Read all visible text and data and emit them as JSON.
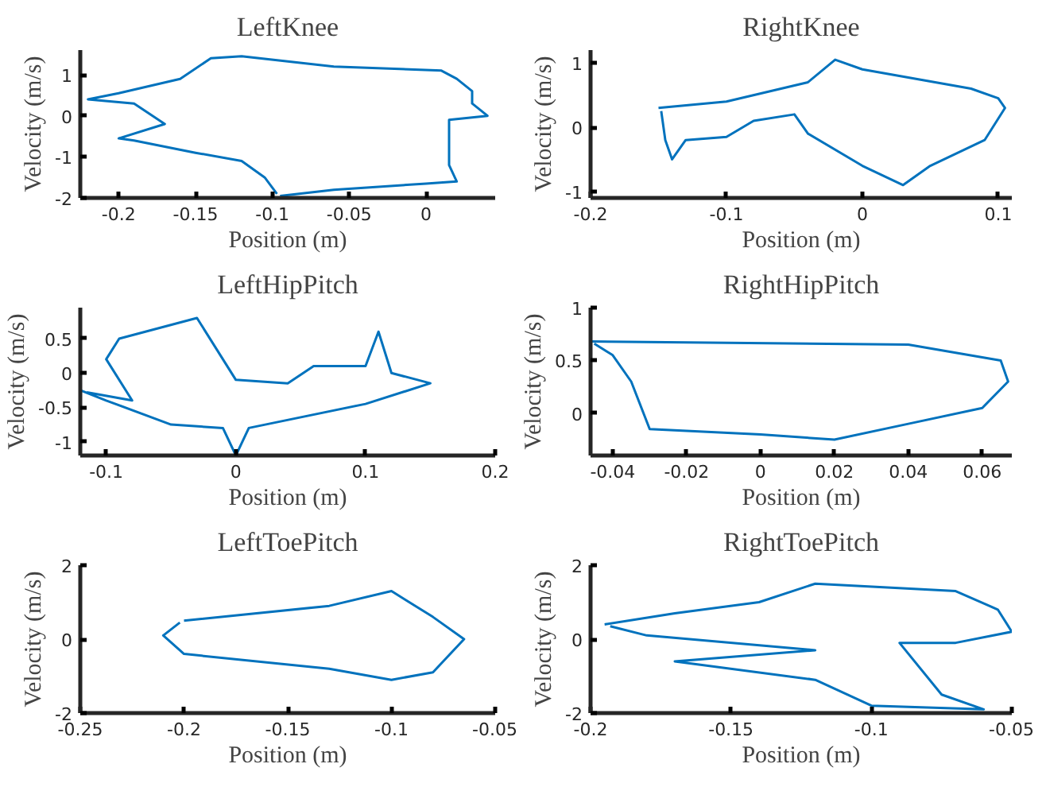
{
  "chart_data": [
    {
      "type": "line",
      "title": "LeftKnee",
      "xlabel": "Position (m)",
      "ylabel": "Velocity (m/s)",
      "xlim": [
        -0.225,
        0.045
      ],
      "ylim": [
        -2,
        1.6
      ],
      "xticks": [
        -0.2,
        -0.15,
        -0.1,
        -0.05,
        0
      ],
      "yticks": [
        -2,
        -1,
        0,
        1
      ],
      "x": [
        -0.095,
        -0.06,
        0.0,
        0.02,
        0.015,
        0.015,
        0.04,
        0.03,
        0.03,
        0.02,
        0.01,
        -0.06,
        -0.12,
        -0.14,
        -0.16,
        -0.2,
        -0.22,
        -0.19,
        -0.17,
        -0.2,
        -0.19,
        -0.15,
        -0.12,
        -0.105,
        -0.097
      ],
      "series": [
        {
          "color": "#0072bd",
          "values": [
            -1.95,
            -1.8,
            -1.65,
            -1.6,
            -1.2,
            -0.1,
            0.0,
            0.3,
            0.6,
            0.9,
            1.1,
            1.2,
            1.45,
            1.4,
            0.9,
            0.55,
            0.4,
            0.3,
            -0.2,
            -0.55,
            -0.6,
            -0.9,
            -1.1,
            -1.5,
            -1.9
          ]
        }
      ]
    },
    {
      "type": "line",
      "title": "RightKnee",
      "xlabel": "Position (m)",
      "ylabel": "Velocity (m/s)",
      "xlim": [
        -0.2,
        0.11
      ],
      "ylim": [
        -1.1,
        1.2
      ],
      "xticks": [
        -0.2,
        -0.1,
        0,
        0.1
      ],
      "yticks": [
        -1,
        0,
        1
      ],
      "x": [
        -0.15,
        -0.1,
        -0.04,
        -0.02,
        0.0,
        0.08,
        0.1,
        0.105,
        0.09,
        0.05,
        0.03,
        0.0,
        -0.04,
        -0.05,
        -0.08,
        -0.1,
        -0.13,
        -0.14,
        -0.145,
        -0.148
      ],
      "series": [
        {
          "color": "#0072bd",
          "values": [
            0.3,
            0.4,
            0.7,
            1.05,
            0.9,
            0.6,
            0.45,
            0.3,
            -0.2,
            -0.6,
            -0.9,
            -0.6,
            -0.1,
            0.2,
            0.1,
            -0.15,
            -0.2,
            -0.5,
            -0.2,
            0.25
          ]
        }
      ]
    },
    {
      "type": "line",
      "title": "LeftHipPitch",
      "xlabel": "Position (m)",
      "ylabel": "Velocity (m/s)",
      "xlim": [
        -0.12,
        0.2
      ],
      "ylim": [
        -1.2,
        0.95
      ],
      "xticks": [
        -0.1,
        0,
        0.1,
        0.2
      ],
      "yticks": [
        -1,
        -0.5,
        0,
        0.5
      ],
      "x": [
        -0.12,
        -0.1,
        -0.05,
        -0.01,
        0.0,
        0.01,
        0.1,
        0.15,
        0.12,
        0.11,
        0.1,
        0.06,
        0.04,
        0.0,
        -0.03,
        -0.09,
        -0.1,
        -0.08,
        -0.115
      ],
      "series": [
        {
          "color": "#0072bd",
          "values": [
            -0.25,
            -0.4,
            -0.75,
            -0.8,
            -1.2,
            -0.8,
            -0.45,
            -0.15,
            0.0,
            0.6,
            0.1,
            0.1,
            -0.15,
            -0.1,
            0.8,
            0.5,
            0.2,
            -0.4,
            -0.28
          ]
        }
      ]
    },
    {
      "type": "line",
      "title": "RightHipPitch",
      "xlabel": "Position (m)",
      "ylabel": "Velocity (m/s)",
      "xlim": [
        -0.046,
        0.068
      ],
      "ylim": [
        -0.4,
        1
      ],
      "xticks": [
        -0.04,
        -0.02,
        0,
        0.02,
        0.04,
        0.06
      ],
      "yticks": [
        0,
        0.5,
        1
      ],
      "x": [
        -0.046,
        0.04,
        0.065,
        0.067,
        0.06,
        0.04,
        0.02,
        0.0,
        -0.03,
        -0.035,
        -0.04,
        -0.045
      ],
      "series": [
        {
          "color": "#0072bd",
          "values": [
            0.68,
            0.65,
            0.5,
            0.3,
            0.05,
            -0.1,
            -0.25,
            -0.2,
            -0.15,
            0.3,
            0.55,
            0.66
          ]
        }
      ]
    },
    {
      "type": "line",
      "title": "LeftToePitch",
      "xlabel": "Position (m)",
      "ylabel": "Velocity (m/s)",
      "xlim": [
        -0.25,
        -0.05
      ],
      "ylim": [
        -2,
        2
      ],
      "xticks": [
        -0.25,
        -0.2,
        -0.15,
        -0.1,
        -0.05
      ],
      "yticks": [
        -2,
        0,
        2
      ],
      "x": [
        -0.2,
        -0.13,
        -0.1,
        -0.08,
        -0.065,
        -0.08,
        -0.1,
        -0.13,
        -0.2,
        -0.21,
        -0.202
      ],
      "series": [
        {
          "color": "#0072bd",
          "values": [
            0.5,
            0.9,
            1.3,
            0.6,
            0.0,
            -0.9,
            -1.1,
            -0.8,
            -0.4,
            0.1,
            0.45
          ]
        }
      ]
    },
    {
      "type": "line",
      "title": "RightToePitch",
      "xlabel": "Position (m)",
      "ylabel": "Velocity (m/s)",
      "xlim": [
        -0.2,
        -0.05
      ],
      "ylim": [
        -2,
        2
      ],
      "xticks": [
        -0.2,
        -0.15,
        -0.1,
        -0.05
      ],
      "yticks": [
        -2,
        0,
        2
      ],
      "x": [
        -0.195,
        -0.17,
        -0.14,
        -0.12,
        -0.07,
        -0.055,
        -0.05,
        -0.07,
        -0.09,
        -0.075,
        -0.06,
        -0.1,
        -0.12,
        -0.17,
        -0.12,
        -0.18,
        -0.193
      ],
      "series": [
        {
          "color": "#0072bd",
          "values": [
            0.4,
            0.7,
            1.0,
            1.5,
            1.3,
            0.8,
            0.2,
            -0.1,
            -0.1,
            -1.5,
            -1.9,
            -1.8,
            -1.1,
            -0.6,
            -0.3,
            0.1,
            0.35
          ]
        }
      ]
    }
  ]
}
